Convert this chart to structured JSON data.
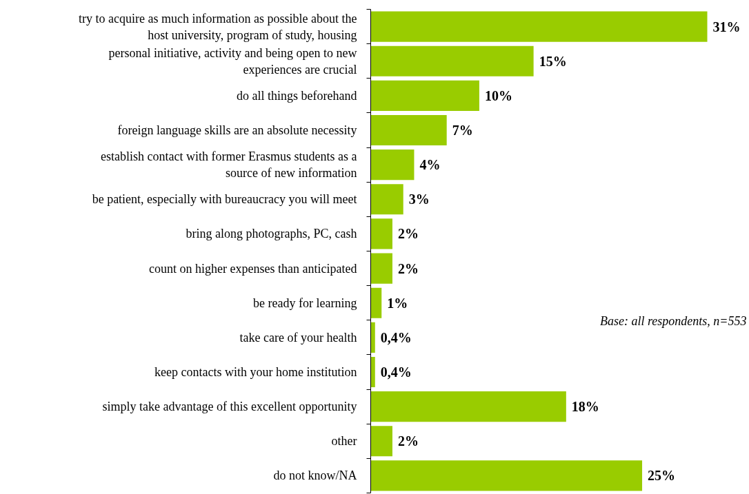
{
  "chart_data": {
    "type": "bar",
    "orientation": "horizontal",
    "categories": [
      "try to acquire as much information as possible about the host university, program of study, housing",
      "personal initiative, activity and being open to new experiences are crucial",
      "do all things beforehand",
      "foreign language skills are an absolute necessity",
      "establish contact with former Erasmus students as a source of new information",
      "be patient, especially with bureaucracy you will meet",
      "bring along photographs, PC, cash",
      "count on higher expenses than anticipated",
      "be ready for learning",
      "take care of your health",
      "keep contacts with your home institution",
      "simply take advantage of this excellent opportunity",
      "other",
      "do not know/NA"
    ],
    "values": [
      31,
      15,
      10,
      7,
      4,
      3,
      2,
      2,
      1,
      0.4,
      0.4,
      18,
      2,
      25
    ],
    "value_labels": [
      "31%",
      "15%",
      "10%",
      "7%",
      "4%",
      "3%",
      "2%",
      "2%",
      "1%",
      "0,4%",
      "0,4%",
      "18%",
      "2%",
      "25%"
    ],
    "color": "#99cc00",
    "tick_labels": "y",
    "annotations": [
      "Base: all respondents, n=553"
    ]
  }
}
